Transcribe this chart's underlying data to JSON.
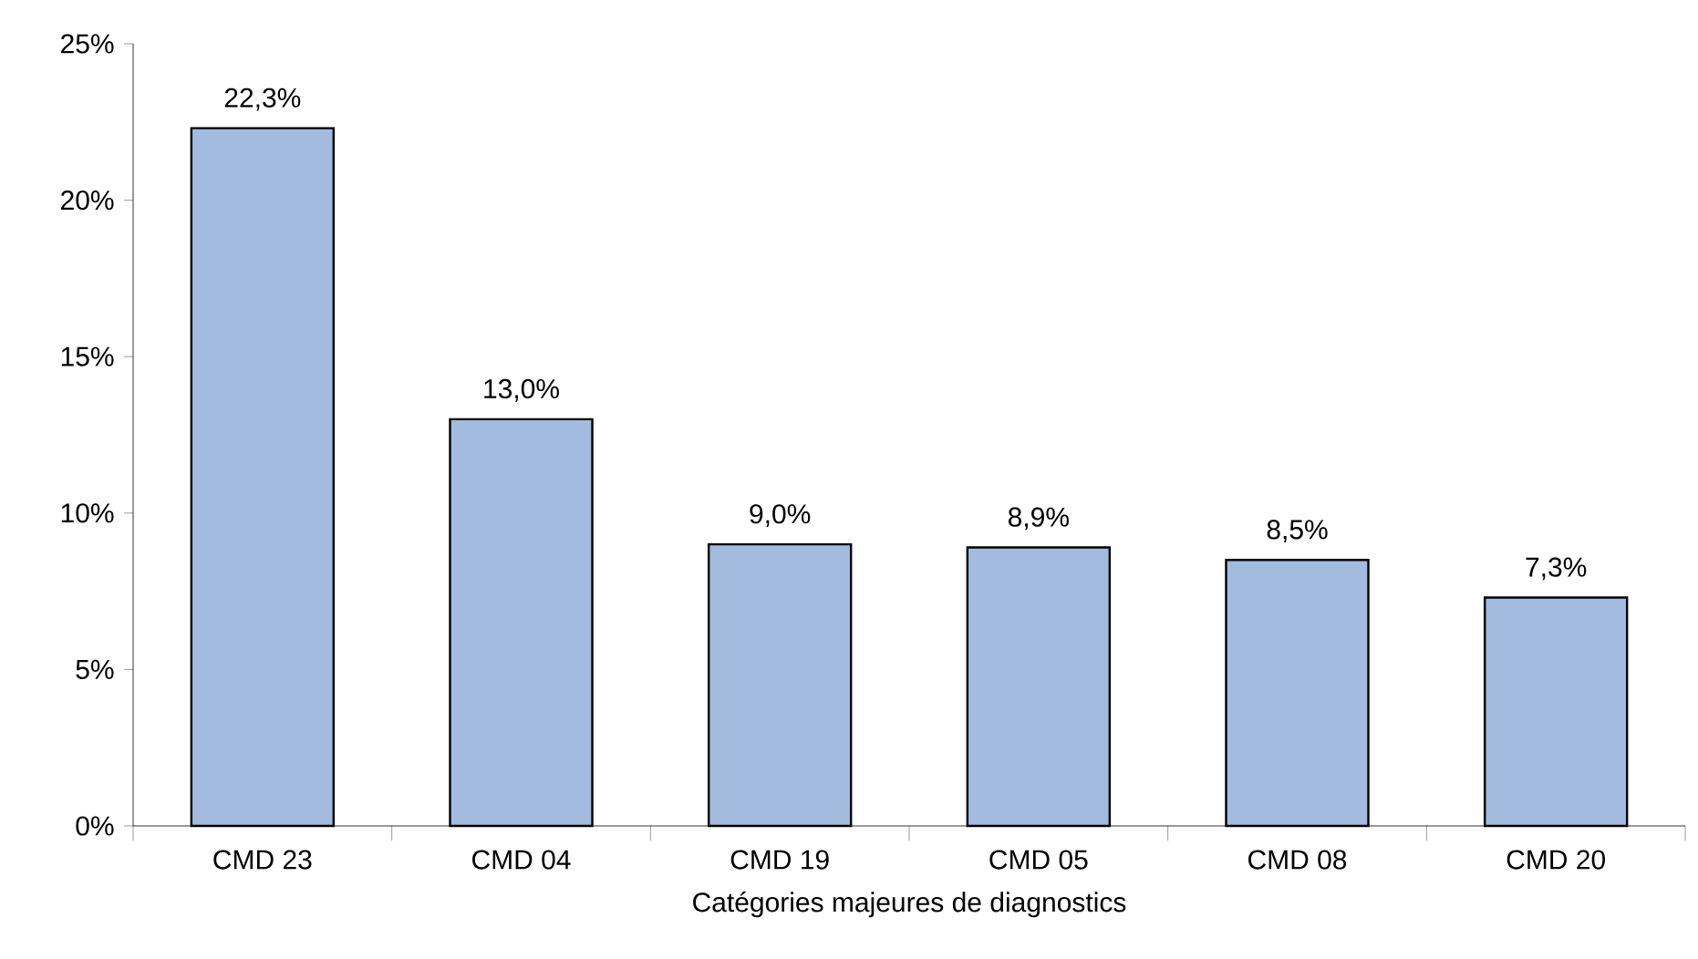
{
  "chart_data": {
    "type": "bar",
    "xlabel": "Catégories majeures de diagnostics",
    "categories": [
      "CMD 23",
      "CMD 04",
      "CMD 19",
      "CMD 05",
      "CMD 08",
      "CMD 20"
    ],
    "values": [
      22.3,
      13.0,
      9.0,
      8.9,
      8.5,
      7.3
    ],
    "value_labels": [
      "22,3%",
      "13,0%",
      "9,0%",
      "8,9%",
      "8,5%",
      "7,3%"
    ],
    "color": "#a3bbdf",
    "ylim": [
      0,
      25
    ],
    "yticks": [
      {
        "value": 0,
        "label": "0%"
      },
      {
        "value": 5,
        "label": "5%"
      },
      {
        "value": 10,
        "label": "10%"
      },
      {
        "value": 15,
        "label": "15%"
      },
      {
        "value": 20,
        "label": "20%"
      },
      {
        "value": 25,
        "label": "25%"
      }
    ],
    "grid": false
  }
}
